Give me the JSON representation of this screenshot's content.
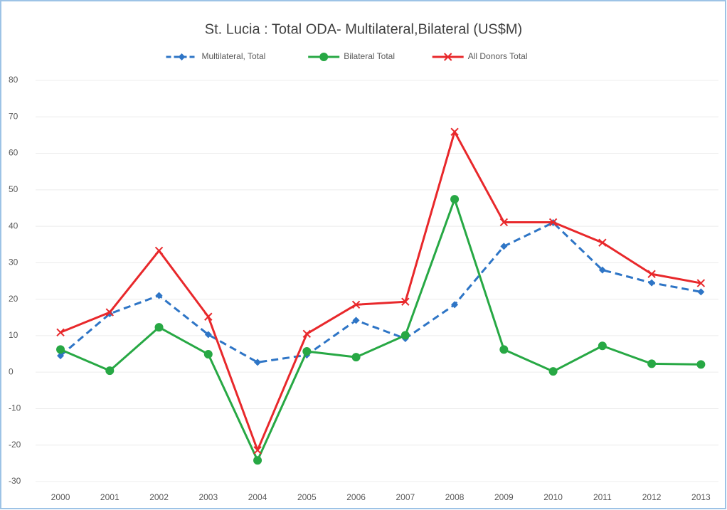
{
  "chart_data": {
    "type": "line",
    "title": "St. Lucia : Total ODA- Multilateral,Bilateral (US$M)",
    "categories": [
      "2000",
      "2001",
      "2002",
      "2003",
      "2004",
      "2005",
      "2006",
      "2007",
      "2008",
      "2009",
      "2010",
      "2011",
      "2012",
      "2013"
    ],
    "series": [
      {
        "name": "Multilateral, Total",
        "color": "#2e75c6",
        "marker": "diamond",
        "dashed": true,
        "values": [
          4.5,
          16,
          21,
          10.3,
          2.7,
          4.7,
          14.2,
          9.2,
          18.5,
          34.5,
          41,
          28,
          24.5,
          22
        ]
      },
      {
        "name": "Bilateral Total",
        "color": "#27a844",
        "marker": "circle",
        "dashed": false,
        "values": [
          6.2,
          0.4,
          12.3,
          4.9,
          -24.2,
          5.7,
          4.1,
          10.1,
          47.4,
          6.2,
          0.2,
          7.2,
          2.3,
          2.1
        ]
      },
      {
        "name": "All Donors Total",
        "color": "#e8282b",
        "marker": "x",
        "dashed": false,
        "values": [
          10.9,
          16.4,
          33.3,
          15.2,
          -21.4,
          10.5,
          18.5,
          19.3,
          65.9,
          41.1,
          41.1,
          35.5,
          26.9,
          24.4
        ]
      }
    ],
    "ylim": [
      -30,
      80
    ],
    "yticks": [
      -30,
      -20,
      -10,
      0,
      10,
      20,
      30,
      40,
      50,
      60,
      70,
      80
    ],
    "grid": true,
    "legend": "top"
  }
}
